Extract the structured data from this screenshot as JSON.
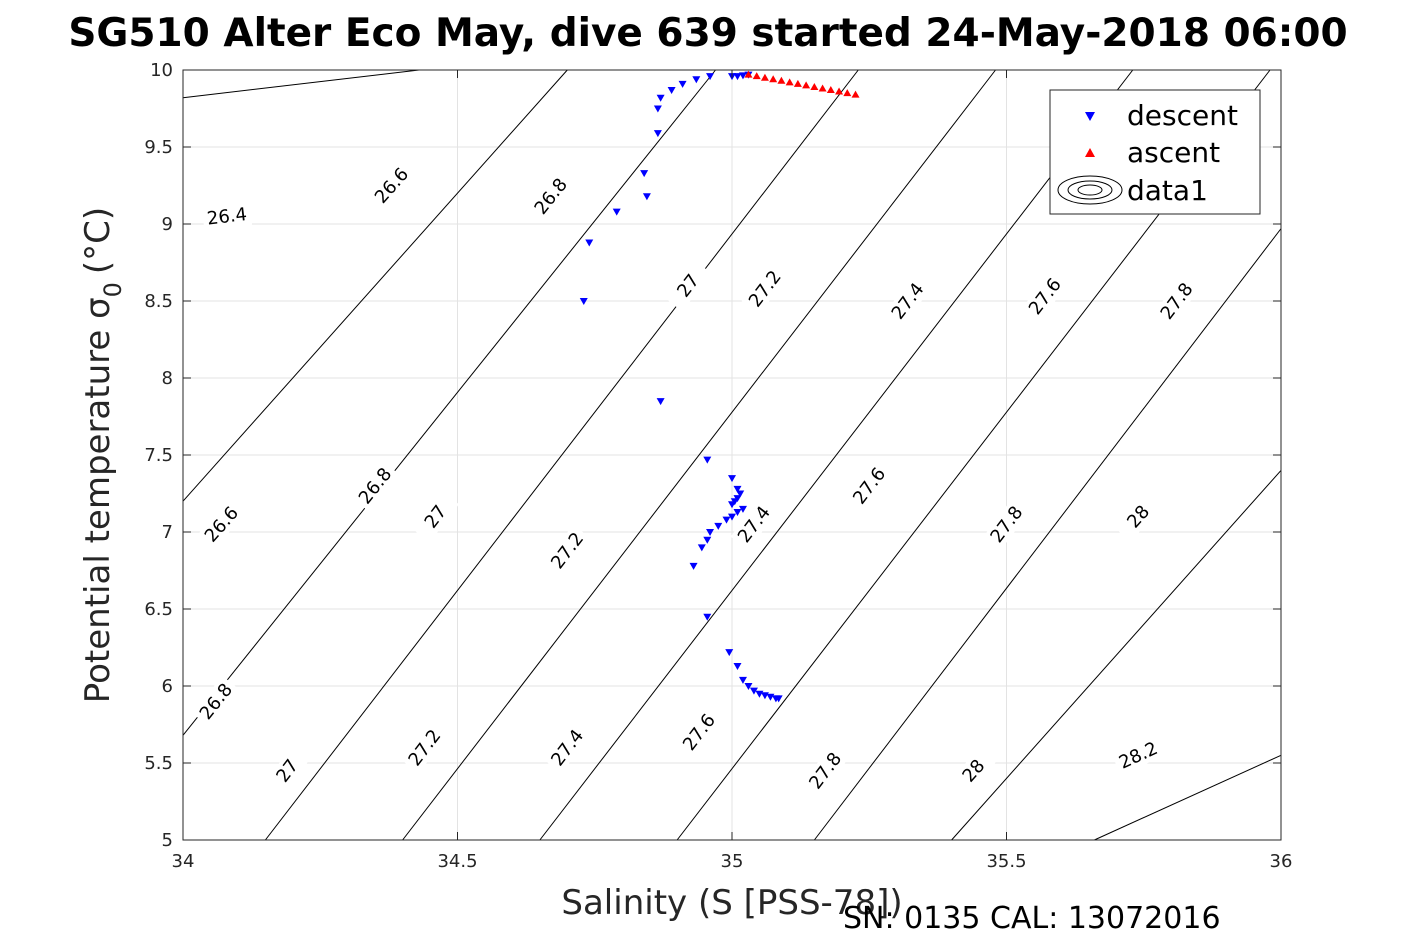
{
  "chart_data": {
    "type": "scatter",
    "title": "SG510 Alter Eco May, dive 639 started 24-May-2018 06:00",
    "xlabel": "Salinity (S [PSS-78])",
    "ylabel": "Potential temperature σ",
    "ylabel_subscript": "0",
    "ylabel_unit": "(°C)",
    "footer": "SN: 0135  CAL: 13072016",
    "xlim": [
      34,
      36
    ],
    "ylim": [
      5,
      10
    ],
    "grid": true,
    "xticks": [
      34,
      34.5,
      35,
      35.5,
      36
    ],
    "xtick_labels": [
      "34",
      "34.5",
      "35",
      "35.5",
      "36"
    ],
    "yticks": [
      5,
      5.5,
      6,
      6.5,
      7,
      7.5,
      8,
      8.5,
      9,
      9.5,
      10
    ],
    "ytick_labels": [
      "5",
      "5.5",
      "6",
      "6.5",
      "7",
      "7.5",
      "8",
      "8.5",
      "9",
      "9.5",
      "10"
    ],
    "legend": {
      "position": "top-right",
      "entries": [
        "descent",
        "ascent",
        "data1"
      ]
    },
    "series": [
      {
        "name": "descent",
        "marker": "triangle-down",
        "color": "#0000ff",
        "x": [
          34.73,
          34.74,
          34.79,
          34.84,
          34.845,
          34.865,
          34.865,
          34.87,
          34.89,
          34.91,
          34.935,
          34.96,
          35.0,
          35.01,
          35.02,
          35.03,
          34.87,
          34.955,
          35.0,
          35.01,
          35.015,
          35.01,
          35.005,
          35.0,
          35.02,
          35.01,
          35.0,
          34.99,
          34.975,
          34.96,
          34.955,
          34.945,
          34.93,
          34.955,
          34.995,
          35.01,
          35.02,
          35.03,
          35.04,
          35.05,
          35.06,
          35.07,
          35.08,
          35.085
        ],
        "y": [
          8.5,
          8.88,
          9.08,
          9.33,
          9.18,
          9.59,
          9.75,
          9.82,
          9.87,
          9.91,
          9.94,
          9.96,
          9.96,
          9.96,
          9.965,
          9.97,
          7.85,
          7.47,
          7.35,
          7.28,
          7.25,
          7.22,
          7.2,
          7.18,
          7.15,
          7.13,
          7.1,
          7.08,
          7.04,
          7.0,
          6.95,
          6.9,
          6.78,
          6.45,
          6.22,
          6.13,
          6.04,
          6.0,
          5.97,
          5.95,
          5.94,
          5.93,
          5.92,
          5.92
        ]
      },
      {
        "name": "ascent",
        "marker": "triangle-up",
        "color": "#ff0000",
        "x": [
          35.03,
          35.045,
          35.06,
          35.075,
          35.09,
          35.105,
          35.12,
          35.135,
          35.15,
          35.165,
          35.18,
          35.195,
          35.21,
          35.225
        ],
        "y": [
          9.97,
          9.96,
          9.95,
          9.94,
          9.93,
          9.92,
          9.91,
          9.9,
          9.89,
          9.88,
          9.87,
          9.86,
          9.85,
          9.84
        ]
      },
      {
        "name": "data1",
        "type": "contour",
        "color": "#000000",
        "levels": [
          {
            "level": 26.4,
            "x": [
              34,
              34.43
            ],
            "y": [
              9.82,
              10
            ],
            "labels": [
              {
                "text": "26.4",
                "x": 34.08,
                "y": 9.05
              }
            ]
          },
          {
            "level": 26.6,
            "x": [
              34,
              34.7
            ],
            "y": [
              7.2,
              10
            ],
            "labels": [
              {
                "text": "26.6",
                "x": 34.38,
                "y": 9.25
              },
              {
                "text": "26.6",
                "x": 34.07,
                "y": 7.05
              }
            ]
          },
          {
            "level": 26.8,
            "x": [
              34,
              34.97
            ],
            "y": [
              5.68,
              10
            ],
            "labels": [
              {
                "text": "26.8",
                "x": 34.67,
                "y": 9.18
              },
              {
                "text": "26.8",
                "x": 34.35,
                "y": 7.3
              },
              {
                "text": "26.8",
                "x": 34.06,
                "y": 5.9
              }
            ]
          },
          {
            "level": 27.0,
            "x": [
              34.15,
              35.23
            ],
            "y": [
              5,
              10
            ],
            "labels": [
              {
                "text": "27",
                "x": 34.92,
                "y": 8.6
              },
              {
                "text": "27",
                "x": 34.46,
                "y": 7.1
              },
              {
                "text": "27",
                "x": 34.19,
                "y": 5.45
              }
            ]
          },
          {
            "level": 27.2,
            "x": [
              34.4,
              35.48
            ],
            "y": [
              5,
              10
            ],
            "labels": [
              {
                "text": "27.2",
                "x": 35.06,
                "y": 8.58
              },
              {
                "text": "27.2",
                "x": 34.7,
                "y": 6.88
              },
              {
                "text": "27.2",
                "x": 34.44,
                "y": 5.6
              }
            ]
          },
          {
            "level": 27.4,
            "x": [
              34.65,
              35.73
            ],
            "y": [
              5,
              10
            ],
            "labels": [
              {
                "text": "27.4",
                "x": 35.32,
                "y": 8.5
              },
              {
                "text": "27.4",
                "x": 35.04,
                "y": 7.05
              },
              {
                "text": "27.4",
                "x": 34.7,
                "y": 5.6
              }
            ]
          },
          {
            "level": 27.6,
            "x": [
              34.9,
              35.98
            ],
            "y": [
              5,
              10
            ],
            "labels": [
              {
                "text": "27.6",
                "x": 35.57,
                "y": 8.53
              },
              {
                "text": "27.6",
                "x": 35.25,
                "y": 7.3
              },
              {
                "text": "27.6",
                "x": 34.94,
                "y": 5.7
              }
            ]
          },
          {
            "level": 27.8,
            "x": [
              35.15,
              36
            ],
            "y": [
              5,
              8.97
            ],
            "labels": [
              {
                "text": "27.8",
                "x": 35.81,
                "y": 8.5
              },
              {
                "text": "27.8",
                "x": 35.5,
                "y": 7.05
              },
              {
                "text": "27.8",
                "x": 35.17,
                "y": 5.45
              }
            ]
          },
          {
            "level": 28.0,
            "x": [
              35.4,
              36
            ],
            "y": [
              5,
              7.4
            ],
            "labels": [
              {
                "text": "28",
                "x": 35.74,
                "y": 7.1
              },
              {
                "text": "28",
                "x": 35.44,
                "y": 5.45
              }
            ]
          },
          {
            "level": 28.2,
            "x": [
              35.66,
              36
            ],
            "y": [
              5,
              5.55
            ],
            "labels": [
              {
                "text": "28.2",
                "x": 35.74,
                "y": 5.55
              }
            ]
          }
        ]
      }
    ]
  }
}
